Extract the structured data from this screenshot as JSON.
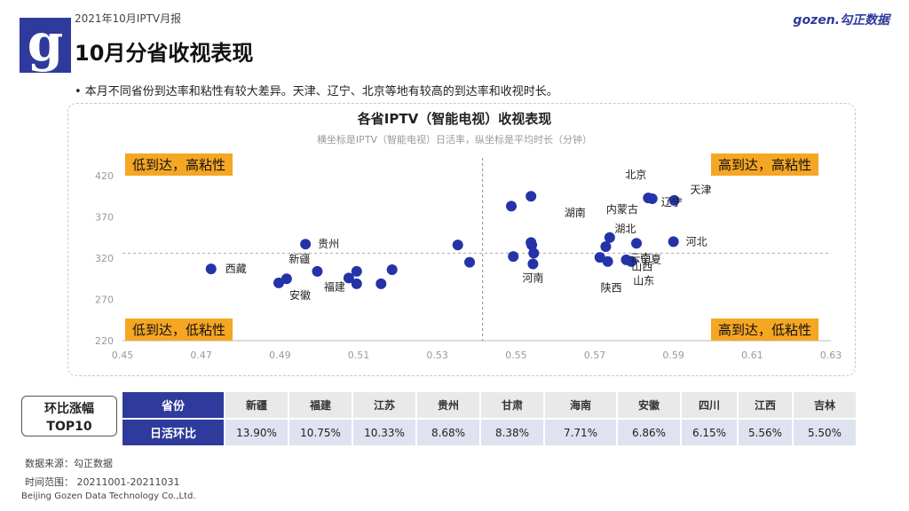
{
  "header": {
    "report_date": "2021年10月IPTV月报",
    "title": "10月分省收视表现",
    "brand": "gozen.勾正数据",
    "logo_letter": "g"
  },
  "bullet": "•  本月不同省份到达率和粘性有较大差异。天津、辽宁、北京等地有较高的到达率和收视时长。",
  "quadrants": {
    "top_left": "低到达，高粘性",
    "top_right": "高到达，高粘性",
    "bottom_left": "低到达，低粘性",
    "bottom_right": "高到达，低粘性"
  },
  "chart_data": {
    "type": "scatter",
    "title": "各省IPTV（智能电视）收视表现",
    "subtitle": "横坐标是IPTV（智能电视）日活率，纵坐标是平均时长（分钟）",
    "xlim": [
      0.45,
      0.63
    ],
    "ylim": [
      220,
      420
    ],
    "xticks": [
      "0.45",
      "0.47",
      "0.49",
      "0.51",
      "0.53",
      "0.55",
      "0.57",
      "0.59",
      "0.61",
      "0.63"
    ],
    "yticks": [
      "220",
      "270",
      "320",
      "370",
      "420"
    ],
    "ref_x": 0.5415,
    "ref_y": 326,
    "point_color": "#2433a8",
    "points": [
      {
        "x": 0.4725,
        "y": 307,
        "label": "西藏"
      },
      {
        "x": 0.4897,
        "y": 290,
        "label": "安徽"
      },
      {
        "x": 0.4917,
        "y": 295,
        "label": ""
      },
      {
        "x": 0.4965,
        "y": 337,
        "label": "贵州"
      },
      {
        "x": 0.4995,
        "y": 304,
        "label": "新疆"
      },
      {
        "x": 0.5075,
        "y": 296,
        "label": "福建"
      },
      {
        "x": 0.5095,
        "y": 304,
        "label": ""
      },
      {
        "x": 0.5095,
        "y": 289,
        "label": ""
      },
      {
        "x": 0.5157,
        "y": 289,
        "label": ""
      },
      {
        "x": 0.5185,
        "y": 306,
        "label": ""
      },
      {
        "x": 0.5352,
        "y": 336,
        "label": ""
      },
      {
        "x": 0.5382,
        "y": 315,
        "label": ""
      },
      {
        "x": 0.5488,
        "y": 383,
        "label": ""
      },
      {
        "x": 0.5493,
        "y": 322,
        "label": ""
      },
      {
        "x": 0.5538,
        "y": 395,
        "label": ""
      },
      {
        "x": 0.5538,
        "y": 339,
        "label": ""
      },
      {
        "x": 0.554,
        "y": 336,
        "label": ""
      },
      {
        "x": 0.5545,
        "y": 326,
        "label": ""
      },
      {
        "x": 0.5543,
        "y": 313,
        "label": "河南"
      },
      {
        "x": 0.5713,
        "y": 321,
        "label": "湖南"
      },
      {
        "x": 0.5728,
        "y": 334,
        "label": "湖北"
      },
      {
        "x": 0.5738,
        "y": 345,
        "label": "内蒙古"
      },
      {
        "x": 0.5733,
        "y": 316,
        "label": "陕西"
      },
      {
        "x": 0.578,
        "y": 318,
        "label": "云南"
      },
      {
        "x": 0.5793,
        "y": 316,
        "label": "山西"
      },
      {
        "x": 0.5806,
        "y": 338,
        "label": "宁夏"
      },
      {
        "x": 0.5836,
        "y": 393,
        "label": "北京"
      },
      {
        "x": 0.5846,
        "y": 392,
        "label": "辽宁"
      },
      {
        "x": 0.5902,
        "y": 390,
        "label": "天津"
      },
      {
        "x": 0.59,
        "y": 340,
        "label": "河北"
      },
      {
        "x": 0.5793,
        "y": 316,
        "label": "山东"
      }
    ]
  },
  "growth_table": {
    "caption": "环比涨幅\nTOP10",
    "caption_line1": "环比涨幅",
    "caption_line2": "TOP10",
    "row1_header": "省份",
    "row2_header": "日活环比",
    "provinces": [
      "新疆",
      "福建",
      "江苏",
      "贵州",
      "甘肃",
      "海南",
      "安徽",
      "四川",
      "江西",
      "吉林"
    ],
    "values": [
      "13.90%",
      "10.75%",
      "10.33%",
      "8.68%",
      "8.38%",
      "7.71%",
      "6.86%",
      "6.15%",
      "5.56%",
      "5.50%"
    ]
  },
  "footer": {
    "source": "数据来源：勾正数据",
    "period": "时间范围：  20211001-20211031",
    "company": "Beijing Gozen Data Technology Co.,Ltd."
  }
}
